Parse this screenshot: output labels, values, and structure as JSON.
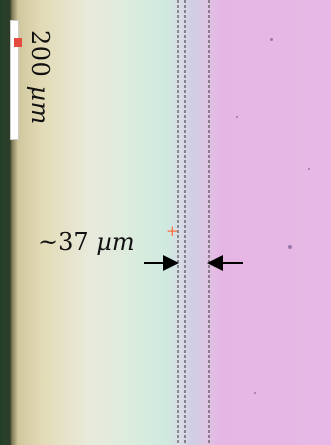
{
  "image": {
    "scale_bar": {
      "label_value": "200",
      "label_unit": "µm",
      "color": "#ffffff",
      "marker_color": "#e44a3e"
    },
    "measurement": {
      "prefix": "~37",
      "unit": "µm",
      "arrow_color": "#000000",
      "guide_line_color": "#333333"
    },
    "plus_marker": {
      "symbol": "+",
      "color": "#ff6b3a"
    },
    "regions": {
      "left_edge_color": "#1f3d25",
      "left_color": "#e2dbb6",
      "middle_color": "#cfe9df",
      "right_color": "#e7b8e5"
    }
  }
}
